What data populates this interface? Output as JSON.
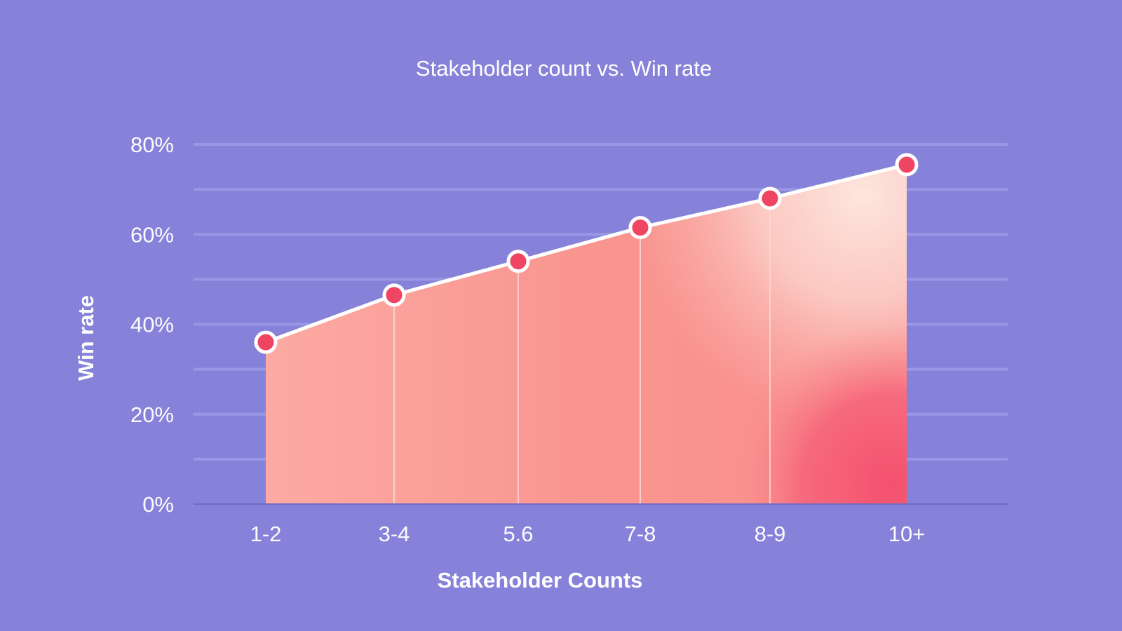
{
  "chart_data": {
    "type": "area",
    "title": "Stakeholder count vs. Win rate",
    "xlabel": "Stakeholder Counts",
    "ylabel": "Win rate",
    "categories": [
      "1-2",
      "3-4",
      "5.6",
      "7-8",
      "8-9",
      "10+"
    ],
    "series": [
      {
        "values": [
          36,
          46.5,
          54,
          61.5,
          68,
          75.5
        ]
      }
    ],
    "ylim": [
      0,
      80
    ],
    "yticks": [
      0,
      20,
      40,
      60,
      80
    ],
    "ytick_labels": [
      "0%",
      "20%",
      "40%",
      "60%",
      "80%"
    ],
    "grid": true,
    "legend": "none"
  },
  "colors": {
    "background": "#8682d9",
    "line": "#ffffff",
    "marker": "#ef4462",
    "area_light": "#fde3da",
    "area_mid": "#f99591",
    "area_dark": "#f45a72"
  }
}
